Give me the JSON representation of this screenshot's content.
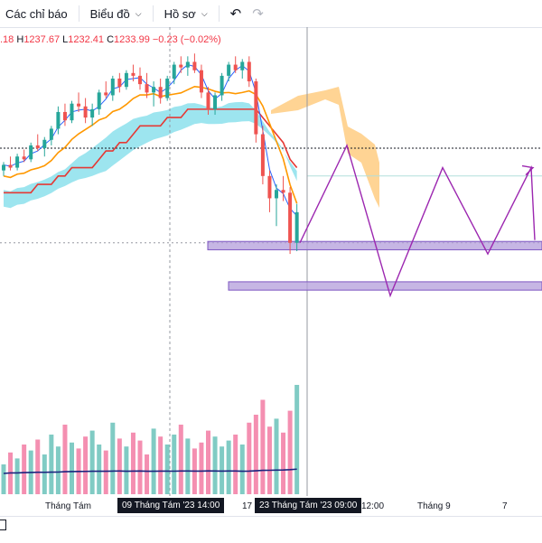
{
  "toolbar": {
    "indicators_label": "Các chỉ báo",
    "chart_label": "Biểu đồ",
    "profile_label": "Hồ sơ",
    "undo_icon": "undo-icon",
    "redo_icon": "redo-icon",
    "chevron_icon": "chevron-down-icon"
  },
  "ohlc": {
    "o_tail": ".18",
    "h_key": "H",
    "h_val": "1237.67",
    "l_key": "L",
    "l_val": "1232.41",
    "c_key": "C",
    "c_val": "1233.99",
    "change": "−0.23 (−0.02%)"
  },
  "xaxis": {
    "ticks": [
      "Tháng Tám",
      "17",
      "12:00",
      "Tháng 9",
      "7"
    ],
    "crosshair_label_1": "09 Tháng Tám '23   14:00",
    "crosshair_label_2": "23 Tháng Tám '23   09:00"
  },
  "colors": {
    "up": "#26a69a",
    "down": "#ef5350",
    "kijun": "#e53935",
    "tenkan": "#ff9800",
    "cloud_bull": "#4dd0e1",
    "cloud_bear": "#ffb74d",
    "ma": "#2962ff",
    "projection": "#9c27b0",
    "zone_fill": "#b39ddb",
    "zone_stroke": "#7e57c2",
    "vol_up": "#80cbc4",
    "vol_down": "#f48fb1",
    "vol_ma": "#1a237e"
  },
  "chart_data": {
    "type": "candlestick",
    "candles": [
      [
        1180,
        1186,
        1176,
        1184
      ],
      [
        1184,
        1190,
        1180,
        1182
      ],
      [
        1182,
        1192,
        1180,
        1190
      ],
      [
        1190,
        1195,
        1186,
        1188
      ],
      [
        1188,
        1200,
        1186,
        1198
      ],
      [
        1198,
        1206,
        1194,
        1196
      ],
      [
        1196,
        1204,
        1190,
        1202
      ],
      [
        1202,
        1212,
        1198,
        1210
      ],
      [
        1210,
        1226,
        1206,
        1222
      ],
      [
        1222,
        1228,
        1212,
        1216
      ],
      [
        1216,
        1230,
        1214,
        1228
      ],
      [
        1228,
        1236,
        1222,
        1226
      ],
      [
        1226,
        1232,
        1214,
        1218
      ],
      [
        1218,
        1228,
        1212,
        1224
      ],
      [
        1224,
        1238,
        1220,
        1236
      ],
      [
        1236,
        1244,
        1232,
        1234
      ],
      [
        1234,
        1248,
        1230,
        1246
      ],
      [
        1246,
        1250,
        1236,
        1240
      ],
      [
        1240,
        1252,
        1238,
        1250
      ],
      [
        1250,
        1256,
        1244,
        1248
      ],
      [
        1248,
        1254,
        1238,
        1242
      ],
      [
        1242,
        1250,
        1232,
        1236
      ],
      [
        1236,
        1244,
        1226,
        1240
      ],
      [
        1240,
        1246,
        1228,
        1232
      ],
      [
        1232,
        1248,
        1230,
        1246
      ],
      [
        1246,
        1258,
        1242,
        1256
      ],
      [
        1256,
        1262,
        1250,
        1254
      ],
      [
        1254,
        1262,
        1248,
        1258
      ],
      [
        1258,
        1264,
        1250,
        1252
      ],
      [
        1252,
        1256,
        1232,
        1236
      ],
      [
        1236,
        1240,
        1220,
        1224
      ],
      [
        1224,
        1236,
        1220,
        1234
      ],
      [
        1234,
        1250,
        1230,
        1248
      ],
      [
        1248,
        1258,
        1244,
        1256
      ],
      [
        1256,
        1262,
        1250,
        1252
      ],
      [
        1252,
        1260,
        1246,
        1258
      ],
      [
        1258,
        1262,
        1240,
        1244
      ],
      [
        1244,
        1246,
        1200,
        1206
      ],
      [
        1206,
        1212,
        1170,
        1176
      ],
      [
        1176,
        1180,
        1150,
        1160
      ],
      [
        1160,
        1170,
        1140,
        1166
      ],
      [
        1166,
        1176,
        1158,
        1164
      ],
      [
        1164,
        1168,
        1120,
        1128
      ],
      [
        1128,
        1156,
        1122,
        1150
      ]
    ],
    "projection_path": [
      1128,
      1198,
      1090,
      1182,
      1120,
      1182,
      1130
    ],
    "zones": [
      [
        1123,
        1129
      ],
      [
        1094,
        1100
      ]
    ],
    "volume": [
      30,
      42,
      36,
      50,
      44,
      55,
      40,
      60,
      48,
      70,
      52,
      46,
      58,
      64,
      50,
      44,
      72,
      56,
      48,
      62,
      54,
      40,
      66,
      58,
      50,
      60,
      70,
      56,
      46,
      52,
      64,
      58,
      48,
      54,
      60,
      50,
      72,
      80,
      95,
      68,
      76,
      62,
      84,
      110
    ],
    "xlabel": "",
    "ylabel": ""
  }
}
